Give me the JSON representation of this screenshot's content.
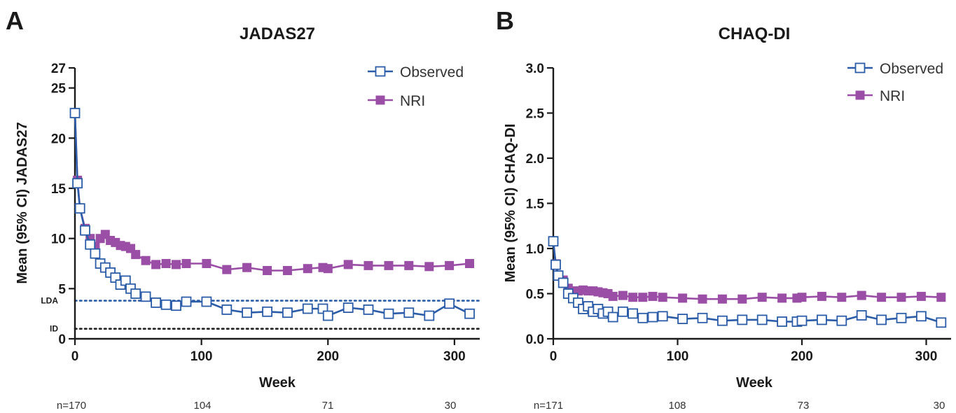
{
  "panels": [
    {
      "letter": "A",
      "n_labels": [
        "n=170",
        "104",
        "71",
        "30"
      ]
    },
    {
      "letter": "B",
      "n_labels": [
        "n=171",
        "108",
        "73",
        "30"
      ]
    }
  ],
  "colors": {
    "observed": "#2b5ca8",
    "nri": "#9b4ea6",
    "lda_line": "#2b5ca8",
    "id_line": "#222222",
    "axis": "#1a1a1a"
  },
  "chart_data": [
    {
      "type": "line",
      "title": "JADAS27",
      "xlabel": "Week",
      "ylabel": "Mean (95% CI) JADAS27",
      "xlim": [
        0,
        320
      ],
      "ylim": [
        0,
        27
      ],
      "xticks": [
        0,
        100,
        200,
        300
      ],
      "yticks": [
        0,
        5,
        10,
        15,
        20,
        25,
        27
      ],
      "grid": false,
      "legend_position": "top-right",
      "reference_lines": [
        {
          "label": "LDA",
          "y": 3.8,
          "style": "dotted",
          "color": "#2b5ca8"
        },
        {
          "label": "ID",
          "y": 1.0,
          "style": "dotted",
          "color": "#222222"
        }
      ],
      "series": [
        {
          "name": "Observed",
          "marker": "open-square",
          "color": "#2b5ca8",
          "x": [
            0,
            2,
            4,
            8,
            12,
            16,
            20,
            24,
            28,
            32,
            36,
            40,
            44,
            48,
            56,
            64,
            72,
            80,
            88,
            104,
            120,
            136,
            152,
            168,
            184,
            196,
            200,
            216,
            232,
            248,
            264,
            280,
            296,
            312
          ],
          "y": [
            22.5,
            15.5,
            13.0,
            10.8,
            9.4,
            8.5,
            7.5,
            7.1,
            6.6,
            6.1,
            5.4,
            5.8,
            5.0,
            4.5,
            4.2,
            3.6,
            3.4,
            3.3,
            3.7,
            3.7,
            2.9,
            2.6,
            2.7,
            2.6,
            3.0,
            3.0,
            2.3,
            3.1,
            2.9,
            2.5,
            2.6,
            2.3,
            3.5,
            2.5
          ]
        },
        {
          "name": "NRI",
          "marker": "filled-square",
          "color": "#9b4ea6",
          "x": [
            0,
            2,
            4,
            8,
            12,
            16,
            20,
            24,
            28,
            32,
            36,
            40,
            44,
            48,
            56,
            64,
            72,
            80,
            88,
            104,
            120,
            136,
            152,
            168,
            184,
            196,
            200,
            216,
            232,
            248,
            264,
            280,
            296,
            312
          ],
          "y": [
            22.5,
            15.8,
            13.0,
            11.0,
            10.0,
            9.2,
            10.0,
            10.4,
            9.8,
            9.6,
            9.3,
            9.2,
            9.0,
            8.4,
            7.8,
            7.4,
            7.5,
            7.4,
            7.5,
            7.5,
            6.9,
            7.1,
            6.8,
            6.8,
            7.0,
            7.1,
            7.0,
            7.4,
            7.3,
            7.3,
            7.3,
            7.2,
            7.3,
            7.5
          ]
        }
      ]
    },
    {
      "type": "line",
      "title": "CHAQ-DI",
      "xlabel": "Week",
      "ylabel": "Mean (95% CI) CHAQ-DI",
      "xlim": [
        0,
        320
      ],
      "ylim": [
        0,
        3.0
      ],
      "xticks": [
        0,
        100,
        200,
        300
      ],
      "yticks": [
        0.0,
        0.5,
        1.0,
        1.5,
        2.0,
        2.5,
        3.0
      ],
      "grid": false,
      "legend_position": "top-right",
      "series": [
        {
          "name": "Observed",
          "marker": "open-square",
          "color": "#2b5ca8",
          "x": [
            0,
            2,
            4,
            8,
            12,
            16,
            20,
            24,
            28,
            32,
            36,
            40,
            44,
            48,
            56,
            64,
            72,
            80,
            88,
            104,
            120,
            136,
            152,
            168,
            184,
            196,
            200,
            216,
            232,
            248,
            264,
            280,
            296,
            312
          ],
          "y": [
            1.08,
            0.82,
            0.7,
            0.62,
            0.5,
            0.45,
            0.4,
            0.33,
            0.36,
            0.3,
            0.33,
            0.28,
            0.3,
            0.24,
            0.3,
            0.28,
            0.23,
            0.24,
            0.25,
            0.22,
            0.23,
            0.2,
            0.21,
            0.21,
            0.19,
            0.19,
            0.2,
            0.21,
            0.2,
            0.26,
            0.21,
            0.23,
            0.25,
            0.18
          ]
        },
        {
          "name": "NRI",
          "marker": "filled-square",
          "color": "#9b4ea6",
          "x": [
            0,
            2,
            4,
            8,
            12,
            16,
            20,
            24,
            28,
            32,
            36,
            40,
            44,
            48,
            56,
            64,
            72,
            80,
            88,
            104,
            120,
            136,
            152,
            168,
            184,
            196,
            200,
            216,
            232,
            248,
            264,
            280,
            296,
            312
          ],
          "y": [
            1.08,
            0.83,
            0.7,
            0.65,
            0.56,
            0.53,
            0.53,
            0.54,
            0.53,
            0.53,
            0.52,
            0.51,
            0.5,
            0.47,
            0.48,
            0.46,
            0.46,
            0.47,
            0.46,
            0.45,
            0.44,
            0.44,
            0.44,
            0.46,
            0.45,
            0.45,
            0.46,
            0.47,
            0.46,
            0.48,
            0.46,
            0.46,
            0.47,
            0.46
          ]
        }
      ]
    }
  ]
}
